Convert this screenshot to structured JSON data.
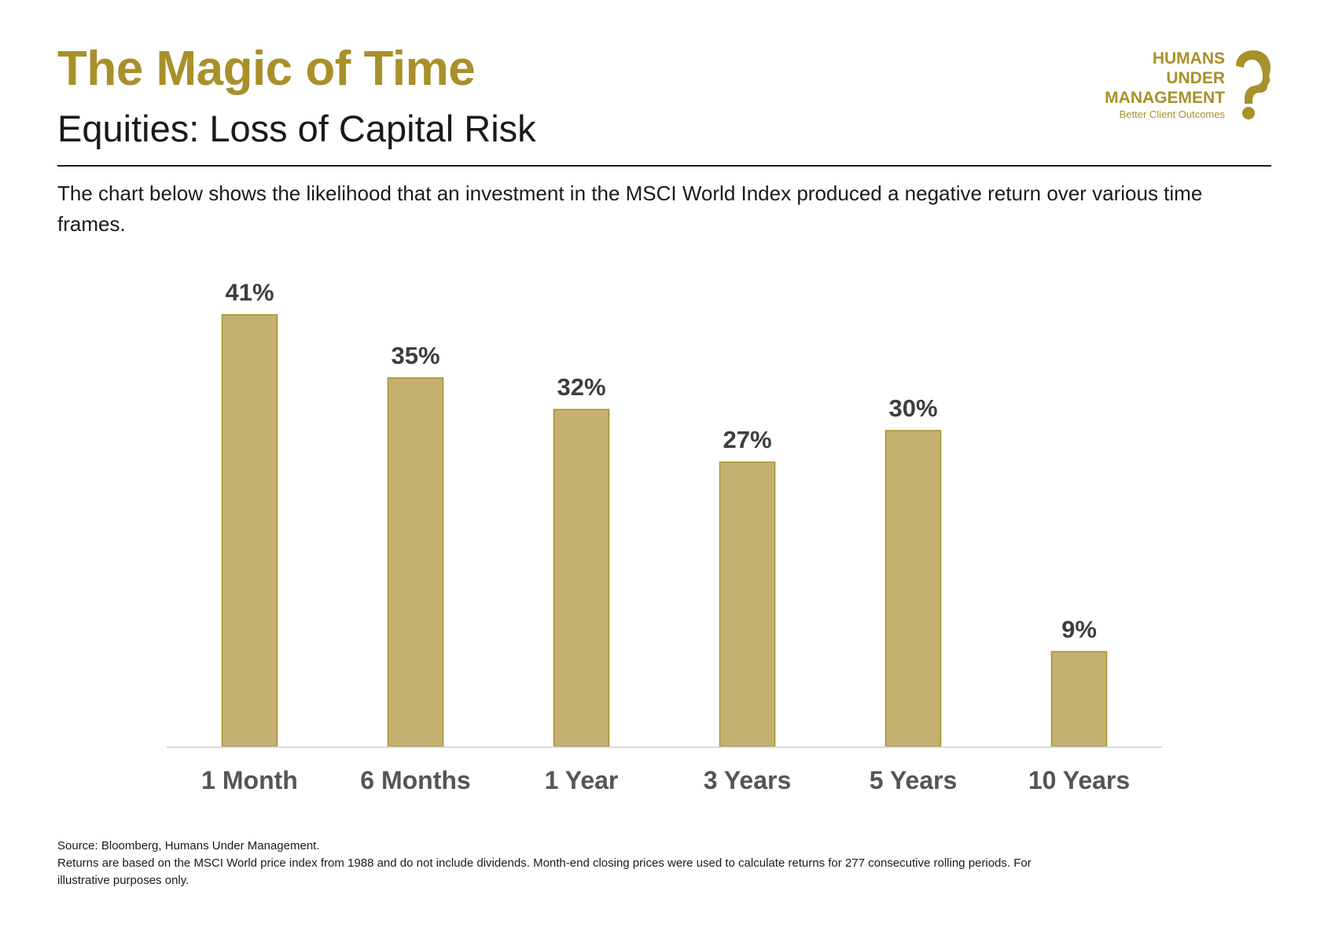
{
  "header": {
    "title": "The Magic of Time",
    "subtitle": "Equities: Loss of Capital Risk",
    "intro": "The chart below shows the likelihood that an investment in the MSCI World Index produced a negative return over various time frames."
  },
  "logo": {
    "line1": "HUMANS",
    "line2": "UNDER",
    "line3": "MANAGEMENT",
    "tagline": "Better Client Outcomes",
    "mark_icon": "question-mark-head-icon"
  },
  "colors": {
    "accent": "#a8902a",
    "bar_fill": "#c4b171",
    "bar_stroke": "#a8902a",
    "axis": "#d9d9d9"
  },
  "chart_data": {
    "type": "bar",
    "categories": [
      "1 Month",
      "6 Months",
      "1 Year",
      "3 Years",
      "5 Years",
      "10 Years"
    ],
    "values": [
      41,
      35,
      32,
      27,
      30,
      9
    ],
    "data_labels": [
      "41%",
      "35%",
      "32%",
      "27%",
      "30%",
      "9%"
    ],
    "title": "",
    "xlabel": "",
    "ylabel": "",
    "ylim": [
      0,
      45
    ],
    "grid": false,
    "legend": "none"
  },
  "footer": {
    "source": "Source: Bloomberg, Humans Under Management.",
    "note": "Returns are based on the MSCI World price index from 1988 and do not include dividends. Month-end closing prices were used to calculate returns for 277 consecutive rolling periods. For illustrative purposes only."
  }
}
